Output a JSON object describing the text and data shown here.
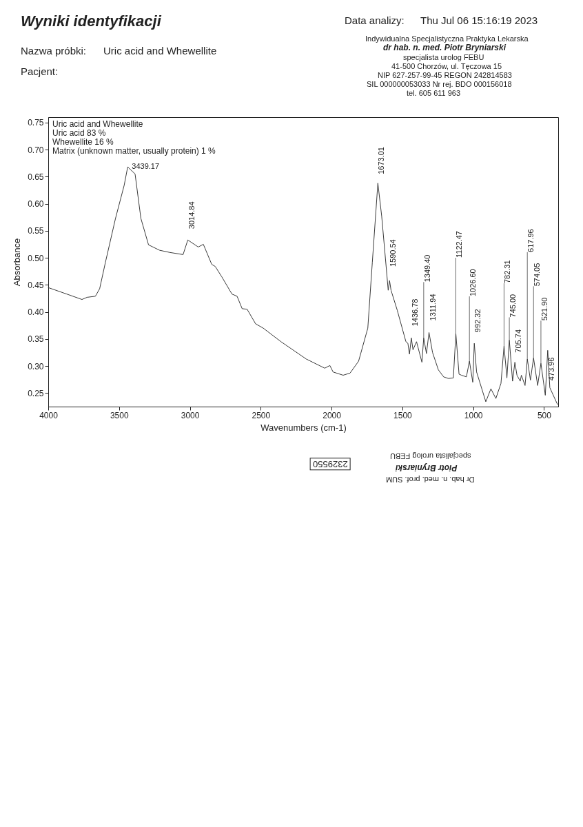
{
  "chart_data": {
    "type": "line",
    "title": "Wyniki identyfikacji",
    "xlabel": "Wavenumbers (cm-1)",
    "ylabel": "Absorbance",
    "x": [
      4000,
      3869,
      3762,
      3726,
      3667,
      3637,
      3596,
      3525,
      3464,
      3439.17,
      3387,
      3346,
      3292,
      3214,
      3143,
      3048,
      3014.84,
      2941,
      2905,
      2846,
      2821,
      2775,
      2703,
      2667,
      2631,
      2596,
      2536,
      2482,
      2357,
      2179,
      2048,
      2012,
      1989,
      1918,
      1869,
      1809,
      1744,
      1712,
      1673.01,
      1646,
      1620,
      1600,
      1590.54,
      1580,
      1536,
      1475,
      1461,
      1450,
      1436.78,
      1425,
      1400,
      1362,
      1349.4,
      1330,
      1311.94,
      1287,
      1246,
      1209,
      1175,
      1140,
      1122.47,
      1100,
      1083,
      1048,
      1026.6,
      1003,
      992.32,
      976,
      911,
      875,
      840,
      804,
      782.31,
      762,
      745.0,
      722,
      705.74,
      691,
      668,
      660,
      634,
      617.96,
      596,
      574.05,
      545,
      521.9,
      491,
      473.96,
      459,
      405
    ],
    "series": [
      {
        "color": "#3a3a3a",
        "values": [
          0.445,
          0.433,
          0.423,
          0.427,
          0.429,
          0.443,
          0.492,
          0.573,
          0.634,
          0.668,
          0.655,
          0.573,
          0.524,
          0.514,
          0.51,
          0.506,
          0.533,
          0.52,
          0.525,
          0.488,
          0.484,
          0.465,
          0.433,
          0.429,
          0.406,
          0.405,
          0.378,
          0.37,
          0.345,
          0.313,
          0.296,
          0.301,
          0.289,
          0.283,
          0.287,
          0.309,
          0.37,
          0.492,
          0.638,
          0.577,
          0.5,
          0.44,
          0.458,
          0.44,
          0.403,
          0.345,
          0.342,
          0.322,
          0.352,
          0.33,
          0.345,
          0.307,
          0.352,
          0.323,
          0.362,
          0.325,
          0.293,
          0.28,
          0.277,
          0.278,
          0.36,
          0.285,
          0.283,
          0.28,
          0.309,
          0.27,
          0.342,
          0.289,
          0.234,
          0.258,
          0.24,
          0.268,
          0.337,
          0.278,
          0.348,
          0.272,
          0.307,
          0.283,
          0.272,
          0.283,
          0.264,
          0.313,
          0.274,
          0.315,
          0.264,
          0.305,
          0.246,
          0.329,
          0.26,
          0.229
        ]
      }
    ],
    "xlim": [
      4000,
      400
    ],
    "xticks": [
      4000,
      3500,
      3000,
      2500,
      2000,
      1500,
      1000,
      500
    ],
    "ylim": [
      0.225,
      0.76
    ],
    "yticks": [
      0.25,
      {
        "value": 0.3,
        "label": "0.30"
      },
      0.35,
      {
        "value": 0.4,
        "label": "0.40"
      },
      0.45,
      {
        "value": 0.5,
        "label": "0.50"
      },
      0.55,
      {
        "value": 0.6,
        "label": "0.60"
      },
      0.65,
      {
        "value": 0.7,
        "label": "0.70"
      },
      0.75
    ],
    "grid": false,
    "line_style": "solid",
    "annotations": [
      "Nazwa próbki:",
      "Uric acid and Whewellite",
      "Pacjent:",
      "Data analizy:",
      "Thu Jul 06 15:16:19 2023",
      "Indywidualna Specjalistyczna Praktyka Lekarska",
      "dr hab. n. med. Piotr Bryniarski",
      "specjalista urolog FEBU",
      "41-500 Chorzów, ul. Tęczowa 15",
      "NIP 627-257-99-45 REGON 242814583",
      "SIL 000000053033 Nr rej. BDO 000156018",
      "tel. 605 611 963",
      "Uric acid and Whewellite",
      "Uric acid 83 %",
      "Whewellite 16 %",
      "Matrix (unknown matter, usually protein) 1 %",
      "Dr hab. n. med. prof. SUM",
      "Piotr Bryniarski",
      "specjalista urolog FEBU",
      "2329550",
      {
        "text": "3439.17",
        "x": 3439.17,
        "y": 0.668
      },
      {
        "text": "3014.84",
        "x": 3014.84,
        "y": 0.533
      },
      {
        "text": "1673.01",
        "x": 1673.01,
        "y": 0.638
      },
      {
        "text": "1590.54",
        "x": 1590.54,
        "y": 0.458
      },
      {
        "text": "1436.78",
        "x": 1436.78,
        "y": 0.352
      },
      {
        "text": "1349.40",
        "x": 1349.4,
        "y": 0.352
      },
      {
        "text": "1311.94",
        "x": 1311.94,
        "y": 0.362
      },
      {
        "text": "1122.47",
        "x": 1122.47,
        "y": 0.36
      },
      {
        "text": "1026.60",
        "x": 1026.6,
        "y": 0.309
      },
      {
        "text": "992.32",
        "x": 992.32,
        "y": 0.342
      },
      {
        "text": "782.31",
        "x": 782.31,
        "y": 0.337
      },
      {
        "text": "745.00",
        "x": 745.0,
        "y": 0.348
      },
      {
        "text": "705.74",
        "x": 705.74,
        "y": 0.307
      },
      {
        "text": "617.96",
        "x": 617.96,
        "y": 0.313
      },
      {
        "text": "574.05",
        "x": 574.05,
        "y": 0.315
      },
      {
        "text": "521.90",
        "x": 521.9,
        "y": 0.305
      },
      {
        "text": "473.96",
        "x": 473.96,
        "y": 0.329
      }
    ]
  }
}
